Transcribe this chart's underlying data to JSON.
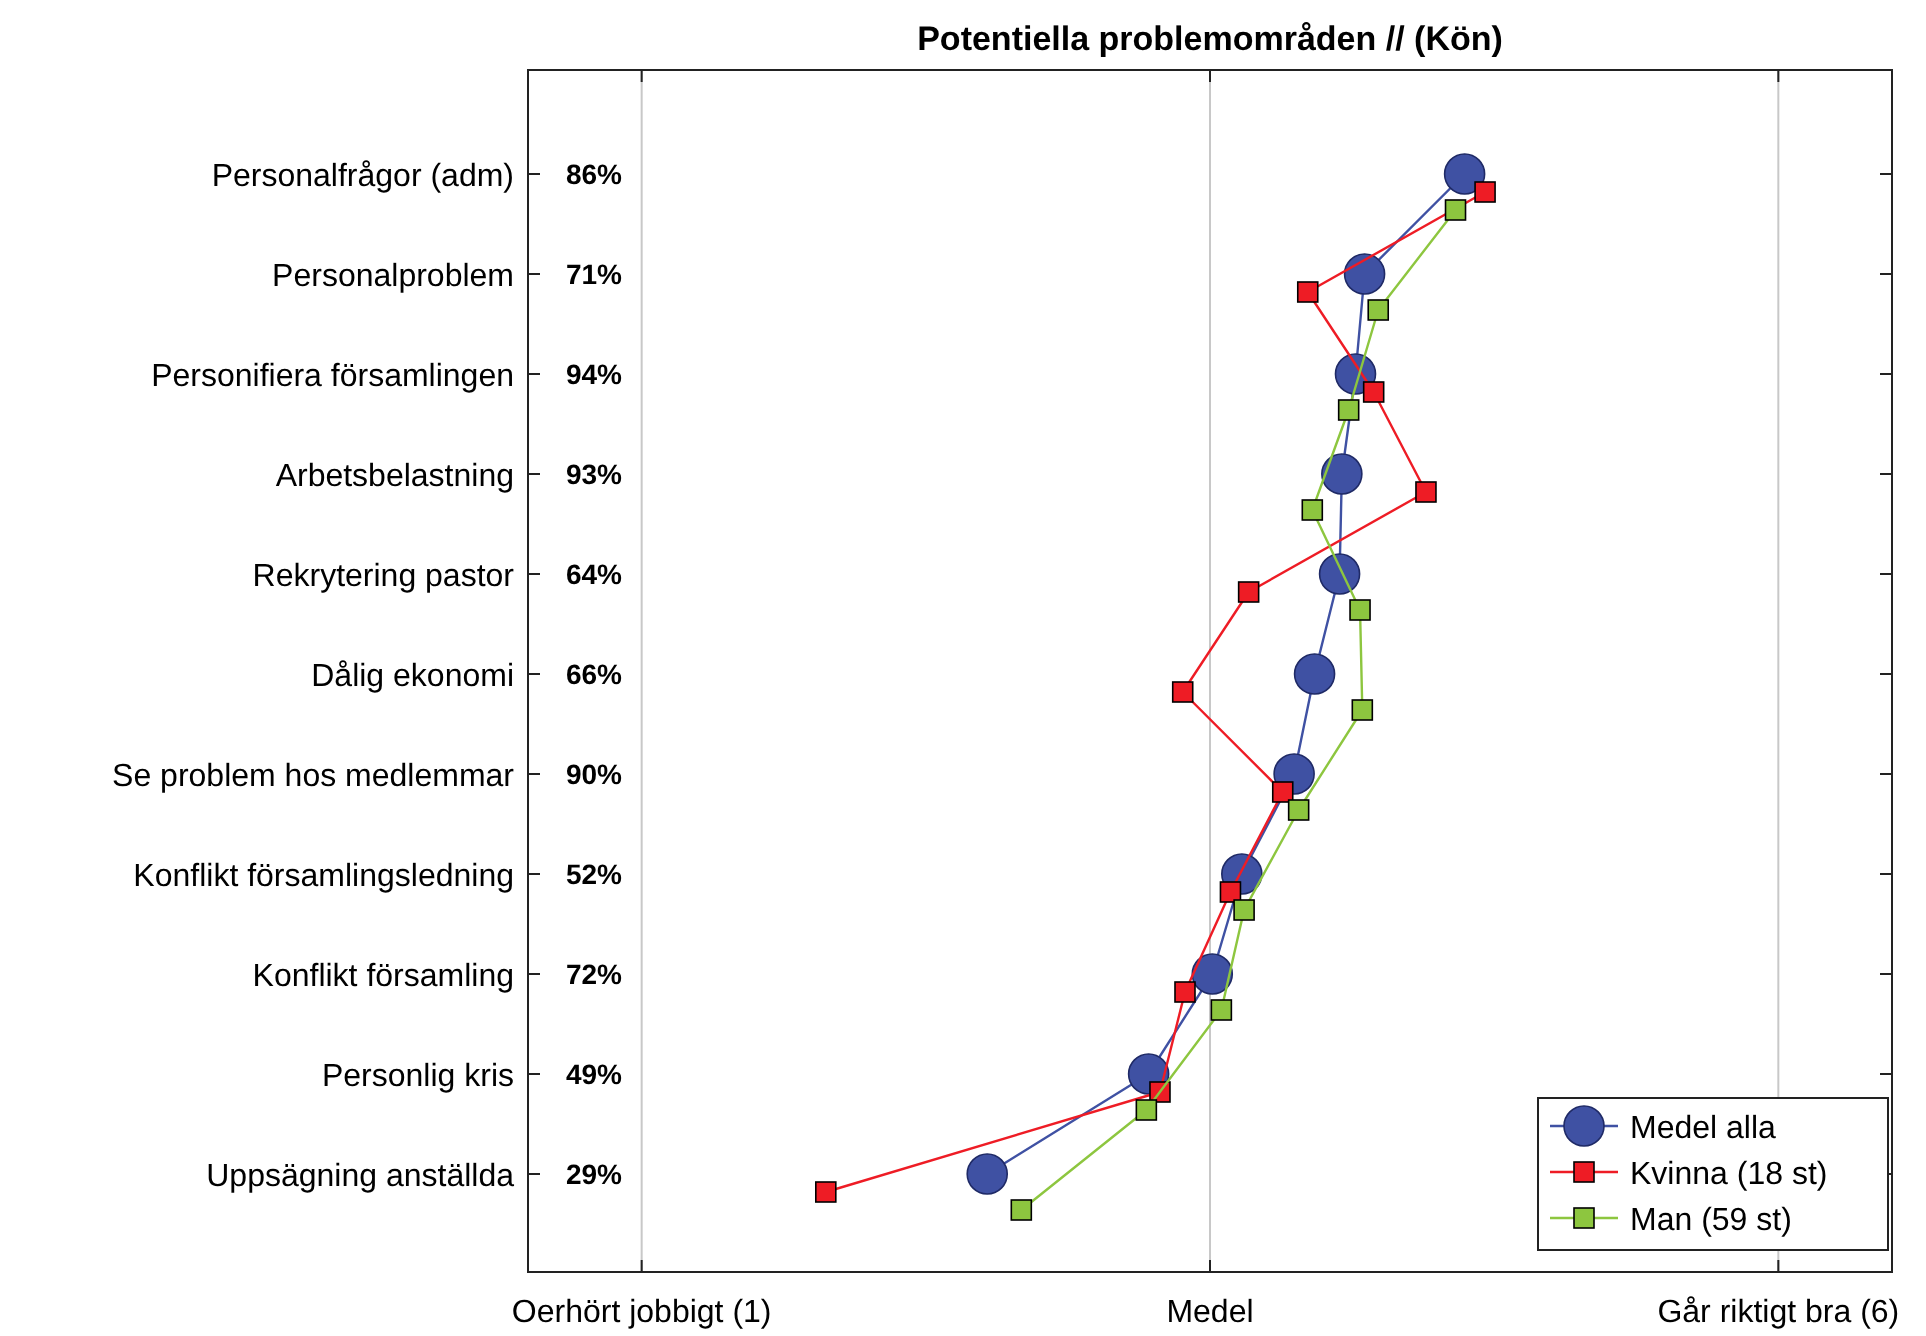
{
  "chart_data": {
    "type": "line",
    "orientation": "horizontal",
    "title": "Potentiella problemområden // (Kön)",
    "categories": [
      "Personalfrågor (adm)",
      "Personalproblem",
      "Personifiera församlingen",
      "Arbetsbelastning",
      "Rekrytering pastor",
      "Dålig ekonomi",
      "Se problem hos medlemmar",
      "Konflikt församlingsledning",
      "Konflikt församling",
      "Personlig kris",
      "Uppsägning anställda"
    ],
    "annotations": [
      "86%",
      "71%",
      "94%",
      "93%",
      "64%",
      "66%",
      "90%",
      "52%",
      "72%",
      "49%",
      "29%"
    ],
    "xlim": [
      0.5,
      6.5
    ],
    "xticks": [
      {
        "value": 1,
        "label": "Oerhört jobbigt (1)"
      },
      {
        "value": 3.5,
        "label": "Medel"
      },
      {
        "value": 6,
        "label": "Går riktigt bra (6)"
      }
    ],
    "grid": "x",
    "legend": "bottom right",
    "series": [
      {
        "name": "Medel alla",
        "color": "#3f51a3",
        "marker": "circle",
        "values": [
          4.62,
          4.18,
          4.14,
          4.08,
          4.07,
          3.96,
          3.87,
          3.64,
          3.51,
          3.23,
          2.52
        ]
      },
      {
        "name": "Kvinna (18 st)",
        "color": "#ee1c25",
        "marker": "square",
        "values": [
          4.71,
          3.93,
          4.22,
          4.45,
          3.67,
          3.38,
          3.82,
          3.59,
          3.39,
          3.28,
          1.81
        ]
      },
      {
        "name": "Man (59 st)",
        "color": "#8dc63f",
        "marker": "square",
        "values": [
          4.58,
          4.24,
          4.11,
          3.95,
          4.16,
          4.17,
          3.89,
          3.65,
          3.55,
          3.22,
          2.67
        ]
      }
    ]
  }
}
